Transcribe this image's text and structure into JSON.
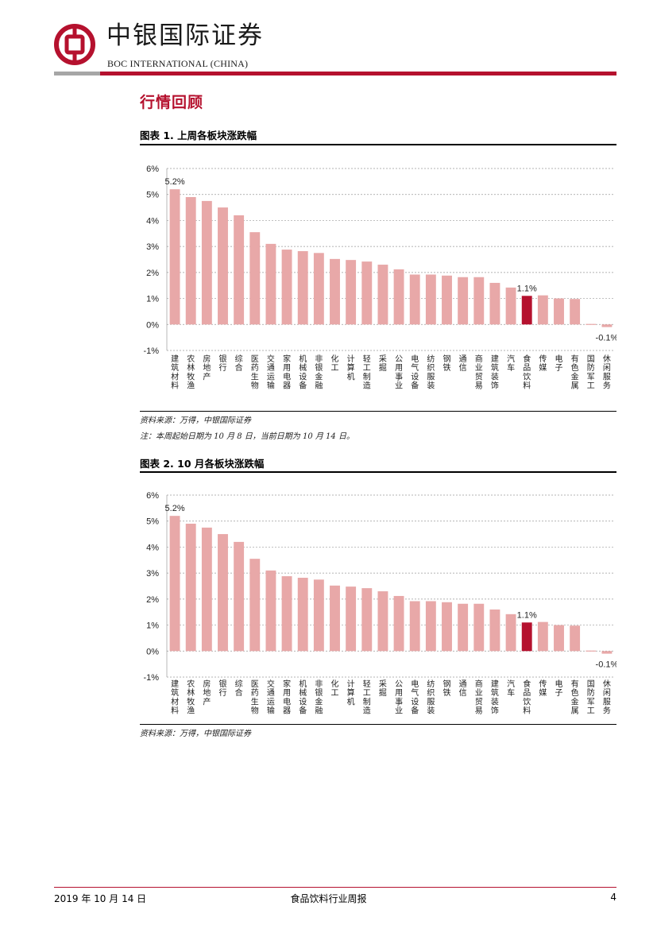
{
  "header": {
    "brand_cn": "中银国际证券",
    "brand_en": "BOC INTERNATIONAL (CHINA)",
    "logo_icon": "boc-coin-logo",
    "brand_color": "#b5112e"
  },
  "section_title": "行情回顾",
  "figures": [
    {
      "title": "图表 1. 上周各板块涨跌幅",
      "source": "资料来源：万得，中银国际证券",
      "note": "注：本周起始日期为 10 月 8 日，当前日期为 10 月 14 日。"
    },
    {
      "title": "图表 2. 10 月各板块涨跌幅",
      "source": "资料来源：万得，中银国际证券",
      "note": ""
    }
  ],
  "chart_data": [
    {
      "type": "bar",
      "title": "",
      "categories": [
        "建筑材料",
        "农林牧渔",
        "房地产",
        "银行",
        "综合",
        "医药生物",
        "交通运输",
        "家用电器",
        "机械设备",
        "非银金融",
        "化工",
        "计算机",
        "轻工制造",
        "采掘",
        "公用事业",
        "电气设备",
        "纺织服装",
        "钢铁",
        "通信",
        "商业贸易",
        "建筑装饰",
        "汽车",
        "食品饮料",
        "传媒",
        "电子",
        "有色金属",
        "国防军工",
        "休闲服务"
      ],
      "values": [
        5.2,
        4.9,
        4.75,
        4.5,
        4.2,
        3.55,
        3.1,
        2.88,
        2.82,
        2.75,
        2.52,
        2.48,
        2.42,
        2.3,
        2.12,
        1.92,
        1.92,
        1.88,
        1.82,
        1.82,
        1.6,
        1.42,
        1.1,
        1.12,
        1.0,
        0.98,
        0.02,
        -0.1
      ],
      "highlight_category": "食品饮料",
      "data_labels": [
        {
          "category": "建筑材料",
          "text": "5.2%"
        },
        {
          "category": "食品饮料",
          "text": "1.1%"
        },
        {
          "category": "休闲服务",
          "text": "-0.1%"
        }
      ],
      "ylim": [
        -1,
        6
      ],
      "yticks": [
        "-1%",
        "0%",
        "1%",
        "2%",
        "3%",
        "4%",
        "5%",
        "6%"
      ],
      "ytick_values": [
        -1,
        0,
        1,
        2,
        3,
        4,
        5,
        6
      ],
      "bar_color": "#e8a8a8",
      "highlight_color": "#b5112e",
      "grid": true,
      "xlabel": "",
      "ylabel": ""
    },
    {
      "type": "bar",
      "title": "",
      "categories": [
        "建筑材料",
        "农林牧渔",
        "房地产",
        "银行",
        "综合",
        "医药生物",
        "交通运输",
        "家用电器",
        "机械设备",
        "非银金融",
        "化工",
        "计算机",
        "轻工制造",
        "采掘",
        "公用事业",
        "电气设备",
        "纺织服装",
        "钢铁",
        "通信",
        "商业贸易",
        "建筑装饰",
        "汽车",
        "食品饮料",
        "传媒",
        "电子",
        "有色金属",
        "国防军工",
        "休闲服务"
      ],
      "values": [
        5.2,
        4.9,
        4.75,
        4.5,
        4.2,
        3.55,
        3.1,
        2.88,
        2.82,
        2.75,
        2.52,
        2.48,
        2.42,
        2.3,
        2.12,
        1.92,
        1.92,
        1.88,
        1.82,
        1.82,
        1.6,
        1.42,
        1.1,
        1.12,
        1.0,
        0.98,
        0.02,
        -0.1
      ],
      "highlight_category": "食品饮料",
      "data_labels": [
        {
          "category": "建筑材料",
          "text": "5.2%"
        },
        {
          "category": "食品饮料",
          "text": "1.1%"
        },
        {
          "category": "休闲服务",
          "text": "-0.1%"
        }
      ],
      "ylim": [
        -1,
        6
      ],
      "yticks": [
        "-1%",
        "0%",
        "1%",
        "2%",
        "3%",
        "4%",
        "5%",
        "6%"
      ],
      "ytick_values": [
        -1,
        0,
        1,
        2,
        3,
        4,
        5,
        6
      ],
      "bar_color": "#e8a8a8",
      "highlight_color": "#b5112e",
      "grid": true,
      "xlabel": "",
      "ylabel": ""
    }
  ],
  "footer": {
    "date": "2019 年 10 月 14 日",
    "title": "食品饮料行业周报",
    "page": "4"
  }
}
